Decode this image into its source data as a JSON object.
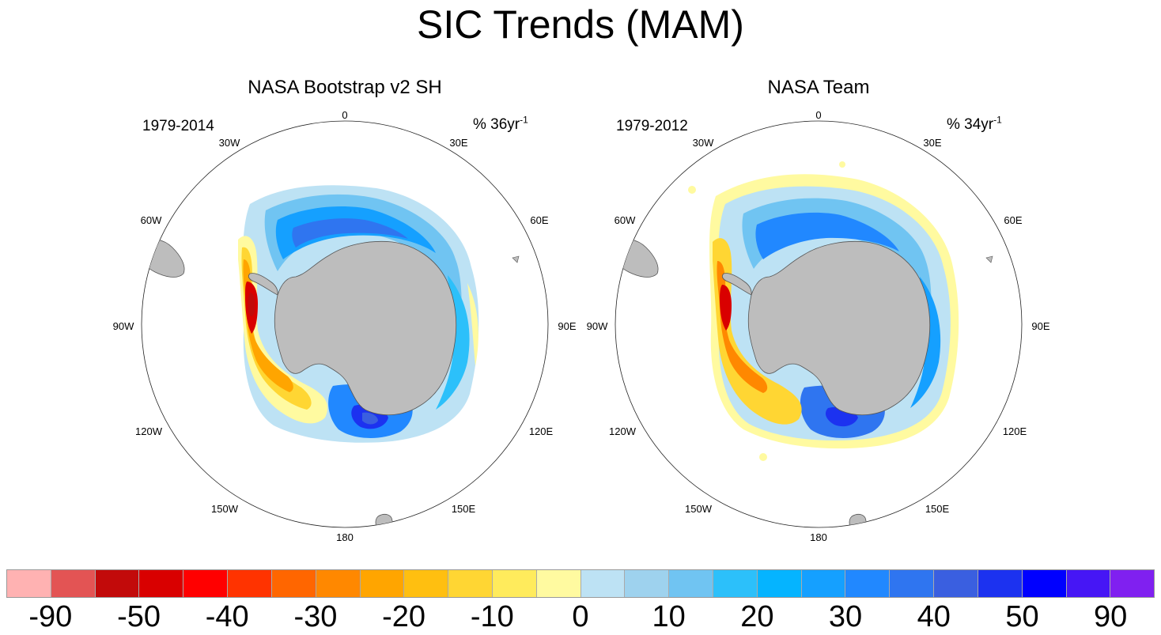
{
  "title": "SIC Trends (MAM)",
  "panels": [
    {
      "title": "NASA Bootstrap v2 SH",
      "period": "1979-2014",
      "units_prefix": "% 36yr",
      "units_exponent": "-1"
    },
    {
      "title": "NASA Team",
      "period": "1979-2012",
      "units_prefix": "% 34yr",
      "units_exponent": "-1"
    }
  ],
  "longitude_labels": [
    "0",
    "30E",
    "60E",
    "90E",
    "120E",
    "150E",
    "180",
    "150W",
    "120W",
    "90W",
    "60W",
    "30W"
  ],
  "colorbar": {
    "colors": [
      "#ffb2b2",
      "#e35454",
      "#c20a0a",
      "#d90000",
      "#ff0000",
      "#ff3300",
      "#ff6600",
      "#ff8800",
      "#ffa500",
      "#ffbf10",
      "#ffd633",
      "#ffeb5c",
      "#fffaa0",
      "#bde2f4",
      "#9ed2ee",
      "#70c4f2",
      "#2cc0fa",
      "#05b4ff",
      "#15a0ff",
      "#2188ff",
      "#2f75f0",
      "#3a5fe0",
      "#1c32f0",
      "#0000ff",
      "#4616f5",
      "#8020f0"
    ],
    "labels": [
      "-90",
      "-50",
      "-40",
      "-30",
      "-20",
      "-10",
      "0",
      "10",
      "20",
      "30",
      "40",
      "50",
      "90"
    ]
  }
}
